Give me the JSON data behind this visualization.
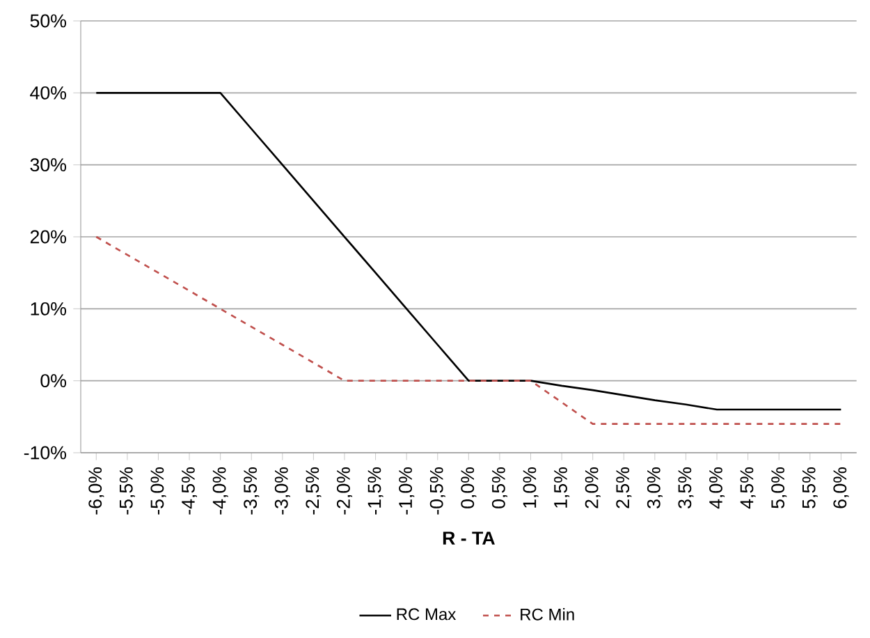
{
  "chart_data": {
    "type": "line",
    "xlabel": "**R - TA**",
    "categories": [
      "-6,0%",
      "-5,5%",
      "-5,0%",
      "-4,5%",
      "-4,0%",
      "-3,5%",
      "-3,0%",
      "-2,5%",
      "-2,0%",
      "-1,5%",
      "-1,0%",
      "-0,5%",
      "0,0%",
      "0,5%",
      "1,0%",
      "1,5%",
      "2,0%",
      "2,5%",
      "3,0%",
      "3,5%",
      "4,0%",
      "4,5%",
      "5,0%",
      "5,5%",
      "6,0%"
    ],
    "series": [
      {
        "name": "RC Max",
        "color": "#000000",
        "line_style": "solid",
        "values": [
          40,
          40,
          40,
          40,
          40,
          35,
          30,
          25,
          20,
          15,
          10,
          5,
          0,
          0,
          0,
          -0.7,
          -1.3,
          -2,
          -2.7,
          -3.3,
          -4,
          -4,
          -4,
          -4,
          -4
        ]
      },
      {
        "name": "RC Min",
        "color": "#c0504d",
        "line_style": "dashed",
        "values": [
          20,
          17.5,
          15,
          12.5,
          10,
          7.5,
          5,
          2.5,
          0,
          0,
          0,
          0,
          0,
          0,
          0,
          -3,
          -6,
          -6,
          -6,
          -6,
          -6,
          -6,
          -6,
          -6,
          -6
        ]
      }
    ],
    "ylim": [
      -10,
      50
    ],
    "yticks": [
      {
        "value": -10,
        "label": "-10%"
      },
      {
        "value": 0,
        "label": "0%"
      },
      {
        "value": 10,
        "label": "10%"
      },
      {
        "value": 20,
        "label": "20%"
      },
      {
        "value": 30,
        "label": "30%"
      },
      {
        "value": 40,
        "label": "40%"
      },
      {
        "value": 50,
        "label": "50%"
      }
    ],
    "grid": "y",
    "legend": "bottom",
    "marker": "none"
  }
}
